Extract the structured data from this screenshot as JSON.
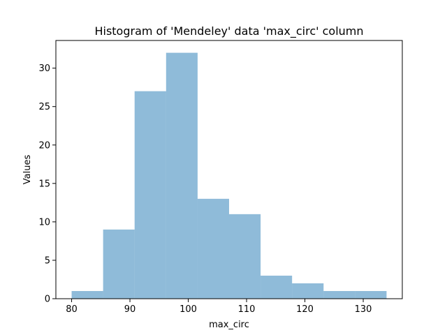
{
  "chart_data": {
    "type": "bar",
    "title": "Histogram of 'Mendeley' data 'max_circ' column",
    "xlabel": "max_circ",
    "ylabel": "Values",
    "bins": [
      {
        "start": 80.0,
        "end": 85.4,
        "count": 1
      },
      {
        "start": 85.4,
        "end": 90.8,
        "count": 9
      },
      {
        "start": 90.8,
        "end": 96.2,
        "count": 27
      },
      {
        "start": 96.2,
        "end": 101.6,
        "count": 32
      },
      {
        "start": 101.6,
        "end": 107.0,
        "count": 13
      },
      {
        "start": 107.0,
        "end": 112.4,
        "count": 11
      },
      {
        "start": 112.4,
        "end": 117.8,
        "count": 3
      },
      {
        "start": 117.8,
        "end": 123.2,
        "count": 2
      },
      {
        "start": 123.2,
        "end": 128.6,
        "count": 1
      },
      {
        "start": 128.6,
        "end": 134.0,
        "count": 1
      }
    ],
    "xticks": [
      80,
      90,
      100,
      110,
      120,
      130
    ],
    "yticks": [
      0,
      5,
      10,
      15,
      20,
      25,
      30
    ],
    "xlim": [
      77.3,
      136.7
    ],
    "ylim": [
      0,
      33.6
    ],
    "bar_color": "#1f77b4",
    "bar_opacity": 0.5,
    "grid": false
  }
}
